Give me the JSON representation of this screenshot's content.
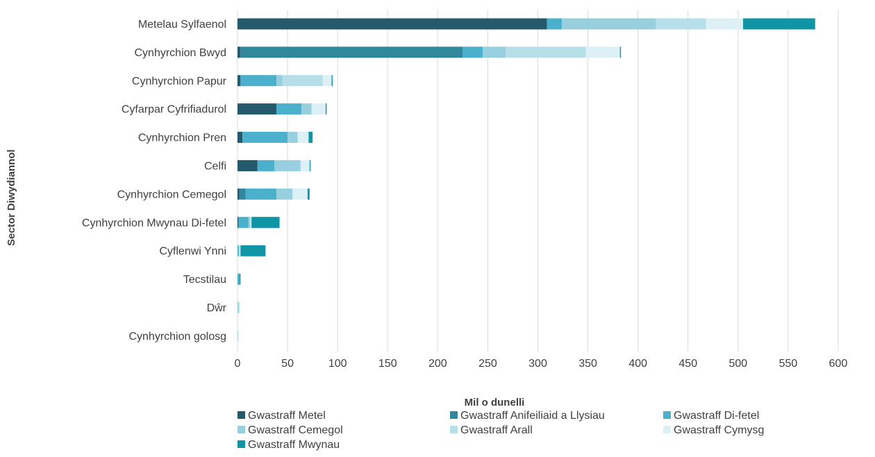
{
  "chart_data": {
    "type": "bar",
    "orientation": "horizontal",
    "stacked": true,
    "xlabel": "Mil o dunelli",
    "ylabel": "Sector Diwydiannol",
    "xlim": [
      0,
      600
    ],
    "xticks": [
      0,
      50,
      100,
      150,
      200,
      250,
      300,
      350,
      400,
      450,
      500,
      550,
      600
    ],
    "grid": "vertical",
    "legend_position": "bottom",
    "categories": [
      "Metelau Sylfaenol",
      "Cynhyrchion Bwyd",
      "Cynhyrchion Papur",
      "Cyfarpar Cyfrifiadurol",
      "Cynhyrchion Pren",
      "Celfi",
      "Cynhyrchion Cemegol",
      "Cynhyrchion Mwynau Di-fetel",
      "Cyflenwi Ynni",
      "Tecstilau",
      "Dŵr",
      "Cynhyrchion golosg"
    ],
    "series": [
      {
        "name": "Gwastraff Metel",
        "color": "#245a6b",
        "values": [
          309,
          3,
          3,
          39,
          5,
          20,
          2,
          1,
          0,
          0,
          0,
          0
        ]
      },
      {
        "name": "Gwastraff Anifeiliaid a Llysiau",
        "color": "#31879c",
        "values": [
          0,
          222,
          0,
          0,
          0,
          0,
          6,
          0,
          0,
          0,
          0,
          0
        ]
      },
      {
        "name": "Gwastraff Di-fetel",
        "color": "#4ab0cb",
        "values": [
          15,
          20,
          36,
          25,
          45,
          17,
          31,
          10,
          1,
          2,
          0,
          0
        ]
      },
      {
        "name": "Gwastraff Cemegol",
        "color": "#98cfdf",
        "values": [
          94,
          23,
          6,
          10,
          10,
          26,
          16,
          2,
          1,
          0,
          1,
          0
        ]
      },
      {
        "name": "Gwastraff Arall",
        "color": "#b7dfea",
        "values": [
          50,
          80,
          40,
          0,
          0,
          0,
          0,
          0,
          0,
          0,
          1,
          1
        ]
      },
      {
        "name": "Gwastraff Cymysg",
        "color": "#ddf0f5",
        "values": [
          37,
          34,
          9,
          14,
          11,
          9,
          15,
          1,
          1,
          0,
          0,
          0
        ]
      },
      {
        "name": "Gwastraff Mwynau",
        "color": "#0f95a6",
        "values": [
          72,
          1,
          1,
          1,
          4,
          1,
          2,
          28,
          25,
          1,
          0,
          0
        ]
      }
    ]
  }
}
